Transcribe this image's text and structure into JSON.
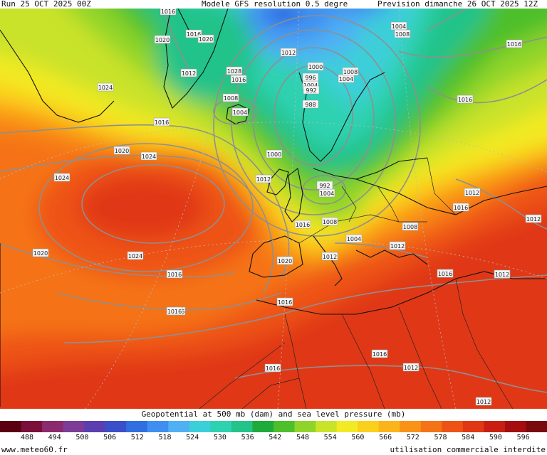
{
  "header": {
    "run": "Run 25 OCT 2025 00Z",
    "model": "Modele GFS resolution 0.5 degre",
    "forecast": "Prevision dimanche 26 OCT 2025 12Z"
  },
  "caption": "Geopotential at 500 mb (dam) and sea level pressure (mb)",
  "scale": {
    "ticks": [
      "488",
      "494",
      "500",
      "506",
      "512",
      "518",
      "524",
      "530",
      "536",
      "542",
      "548",
      "554",
      "560",
      "566",
      "572",
      "578",
      "584",
      "590",
      "596"
    ],
    "colors": [
      "#5a0010",
      "#7a0f3a",
      "#8c2a6e",
      "#7d3c98",
      "#5b3fb0",
      "#3b50c8",
      "#2f6fe0",
      "#3f8ef0",
      "#4fb0f4",
      "#3ccfd9",
      "#2ed1b0",
      "#23c38a",
      "#1faa3c",
      "#4dbf2a",
      "#8fd42a",
      "#c9e22a",
      "#f2ea24",
      "#fbd01c",
      "#fbb419",
      "#f99318",
      "#f57317",
      "#ee5316",
      "#e03714",
      "#c81f12",
      "#a50d0f",
      "#7a0a0d"
    ]
  },
  "pressure_labels": [
    "1016",
    "1016",
    "1020",
    "1012",
    "1004",
    "1008",
    "1016",
    "1020",
    "1024",
    "1012",
    "1016",
    "1012",
    "1028",
    "1016",
    "1004",
    "1008",
    "1016",
    "1000",
    "1004",
    "1008",
    "1004",
    "996",
    "992",
    "988",
    "1000",
    "1004",
    "992",
    "1024",
    "1016",
    "1020",
    "1024",
    "1012",
    "1016",
    "1012",
    "1020",
    "1016",
    "1016",
    "1008",
    "1004",
    "1008",
    "1012",
    "1024",
    "1012",
    "1016",
    "1020",
    "1016",
    "1016",
    "1016",
    "1012",
    "1012",
    "1012",
    "1012",
    "1016",
    "1016",
    "1012",
    "1016",
    "1012"
  ],
  "footer": {
    "site": "www.meteo60.fr",
    "notice": "utilisation commerciale interdite"
  }
}
